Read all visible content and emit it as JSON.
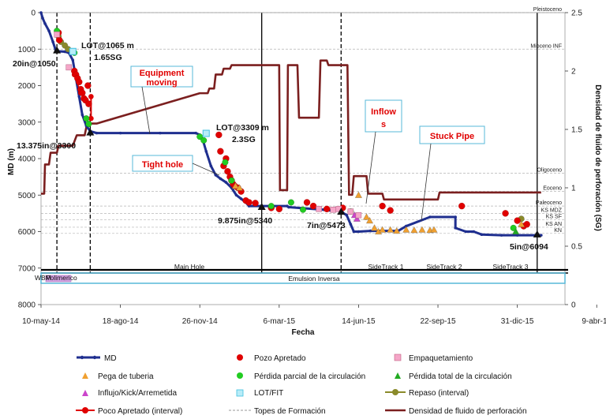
{
  "chart_data": {
    "type": "scatter",
    "xlabel": "Fecha",
    "ylabel": "MD (m)",
    "y2label": "Densidad de fluido de perforación (SG)",
    "ylim": [
      0,
      8000
    ],
    "y2lim": [
      0,
      2.5
    ],
    "x_tick_labels": [
      "10-may-14",
      "18-ago-14",
      "26-nov-14",
      "6-mar-15",
      "14-jun-15",
      "22-sep-15",
      "31-dic-15",
      "9-abr-16"
    ],
    "y_ticks": [
      0,
      1000,
      2000,
      3000,
      4000,
      5000,
      6000,
      7000,
      8000
    ],
    "y2_ticks": [
      0,
      0.5,
      1,
      1.5,
      2,
      2.5
    ],
    "series": [
      {
        "name": "MD",
        "color": "#1f2f8f",
        "points": [
          [
            0,
            0
          ],
          [
            2,
            150
          ],
          [
            5,
            300
          ],
          [
            10,
            500
          ],
          [
            15,
            800
          ],
          [
            18,
            1000
          ],
          [
            22,
            1060
          ],
          [
            30,
            1070
          ],
          [
            35,
            1100
          ],
          [
            40,
            1300
          ],
          [
            44,
            1800
          ],
          [
            48,
            2300
          ],
          [
            52,
            2800
          ],
          [
            57,
            3100
          ],
          [
            62,
            3250
          ],
          [
            70,
            3300
          ],
          [
            100,
            3300
          ],
          [
            150,
            3300
          ],
          [
            195,
            3300
          ],
          [
            200,
            3350
          ],
          [
            204,
            3500
          ],
          [
            208,
            3800
          ],
          [
            214,
            4200
          ],
          [
            220,
            4450
          ],
          [
            226,
            4550
          ],
          [
            233,
            4650
          ],
          [
            240,
            4800
          ],
          [
            246,
            5000
          ],
          [
            252,
            5100
          ],
          [
            258,
            5200
          ],
          [
            262,
            5300
          ],
          [
            278,
            5300
          ],
          [
            310,
            5300
          ],
          [
            312,
            5330
          ],
          [
            330,
            5360
          ],
          [
            356,
            5400
          ],
          [
            360,
            5420
          ],
          [
            378,
            5430
          ],
          [
            380,
            5480
          ],
          [
            385,
            5550
          ],
          [
            390,
            5800
          ],
          [
            394,
            6000
          ],
          [
            400,
            6000
          ],
          [
            415,
            5980
          ],
          [
            440,
            5980
          ],
          [
            450,
            5980
          ],
          [
            460,
            5850
          ],
          [
            490,
            5600
          ],
          [
            522,
            5600
          ],
          [
            522,
            5900
          ],
          [
            535,
            6000
          ],
          [
            545,
            6000
          ],
          [
            555,
            6080
          ],
          [
            580,
            6100
          ],
          [
            600,
            6100
          ],
          [
            625,
            6100
          ],
          [
            630,
            6100
          ]
        ]
      },
      {
        "name": "Densidad de fluido de perforación",
        "color": "#7b1f1f",
        "points": [
          [
            0,
            0.95
          ],
          [
            4,
            0.95
          ],
          [
            5,
            1.2
          ],
          [
            10,
            1.2
          ],
          [
            12,
            1.3
          ],
          [
            20,
            1.3
          ],
          [
            22,
            1.36
          ],
          [
            40,
            1.36
          ],
          [
            45,
            1.45
          ],
          [
            55,
            1.45
          ],
          [
            58,
            1.55
          ],
          [
            70,
            1.55
          ],
          [
            200,
            1.81
          ],
          [
            210,
            1.81
          ],
          [
            212,
            1.85
          ],
          [
            218,
            1.85
          ],
          [
            220,
            1.97
          ],
          [
            228,
            1.97
          ],
          [
            230,
            2.02
          ],
          [
            238,
            2.02
          ],
          [
            240,
            2.05
          ],
          [
            300,
            2.05
          ],
          [
            301,
            0.98
          ],
          [
            310,
            0.98
          ],
          [
            311,
            2.05
          ],
          [
            323,
            2.05
          ],
          [
            325,
            1.6
          ],
          [
            350,
            1.6
          ],
          [
            352,
            2.09
          ],
          [
            360,
            2.09
          ],
          [
            362,
            2.05
          ],
          [
            386,
            2.05
          ],
          [
            388,
            0.94
          ],
          [
            392,
            0.94
          ],
          [
            394,
            1.1
          ],
          [
            410,
            1.1
          ],
          [
            412,
            0.95
          ],
          [
            430,
            0.95
          ],
          [
            432,
            0.9
          ],
          [
            500,
            0.9
          ],
          [
            502,
            0.96
          ],
          [
            610,
            0.96
          ],
          [
            612,
            0.96
          ],
          [
            630,
            0.96
          ]
        ]
      },
      {
        "name": "Pozo Apretado",
        "color": "#e00000",
        "points": [
          [
            22,
            550
          ],
          [
            23,
            750
          ],
          [
            42,
            1600
          ],
          [
            44,
            1700
          ],
          [
            46,
            1800
          ],
          [
            48,
            1900
          ],
          [
            50,
            2100
          ],
          [
            52,
            2200
          ],
          [
            54,
            2350
          ],
          [
            56,
            2400
          ],
          [
            59,
            2000
          ],
          [
            60,
            2500
          ],
          [
            224,
            3350
          ],
          [
            226,
            3800
          ],
          [
            230,
            4200
          ],
          [
            233,
            4000
          ],
          [
            235,
            4350
          ],
          [
            238,
            4500
          ],
          [
            240,
            4600
          ],
          [
            242,
            4700
          ],
          [
            244,
            4750
          ],
          [
            248,
            4800
          ],
          [
            252,
            4900
          ],
          [
            258,
            5150
          ],
          [
            262,
            5200
          ],
          [
            270,
            5220
          ],
          [
            290,
            5350
          ],
          [
            300,
            5380
          ],
          [
            335,
            5200
          ],
          [
            343,
            5300
          ],
          [
            360,
            5380
          ],
          [
            380,
            5350
          ],
          [
            430,
            5300
          ],
          [
            440,
            5420
          ],
          [
            530,
            5300
          ],
          [
            585,
            5500
          ],
          [
            600,
            5700
          ],
          [
            608,
            5850
          ],
          [
            612,
            5800
          ]
        ]
      },
      {
        "name": "Pega de tuberia",
        "color": "#f0a030",
        "points": [
          [
            245,
            4750
          ],
          [
            250,
            4800
          ],
          [
            400,
            5000
          ],
          [
            410,
            5600
          ],
          [
            414,
            5700
          ],
          [
            420,
            5900
          ],
          [
            425,
            6000
          ],
          [
            430,
            5950
          ],
          [
            440,
            5950
          ],
          [
            448,
            5980
          ],
          [
            460,
            5950
          ],
          [
            470,
            5960
          ],
          [
            480,
            5950
          ],
          [
            490,
            5960
          ],
          [
            495,
            5950
          ],
          [
            605,
            5800
          ]
        ]
      },
      {
        "name": "Empaquetamiento",
        "color": "#f5a6c8",
        "points": [
          [
            20,
            600
          ],
          [
            35,
            1500
          ],
          [
            350,
            5380
          ],
          [
            368,
            5400
          ],
          [
            375,
            5380
          ],
          [
            390,
            5450
          ],
          [
            400,
            5550
          ]
        ]
      },
      {
        "name": "Pérdida parcial de la circulación",
        "color": "#22cc22",
        "points": [
          [
            20,
            500
          ],
          [
            42,
            1100
          ],
          [
            57,
            2900
          ],
          [
            60,
            3050
          ],
          [
            200,
            3400
          ],
          [
            205,
            3500
          ],
          [
            232,
            4100
          ],
          [
            240,
            4600
          ],
          [
            290,
            5300
          ],
          [
            315,
            5200
          ],
          [
            330,
            5400
          ],
          [
            390,
            5450
          ],
          [
            595,
            5900
          ]
        ]
      },
      {
        "name": "Pérdida total de la circulación",
        "color": "#22aa22",
        "points": [
          [
            598,
            6000
          ]
        ]
      },
      {
        "name": "Influjo/Kick/Arremetida",
        "color": "#cc44cc",
        "points": [
          [
            395,
            5550
          ],
          [
            398,
            5650
          ]
        ]
      },
      {
        "name": "LOT/FIT",
        "color": "#40c0e0",
        "points": [
          [
            40,
            1065
          ],
          [
            208,
            3309
          ]
        ]
      },
      {
        "name": "Repaso (interval)",
        "color": "#8a8a2a",
        "points": [
          [
            22,
            650
          ],
          [
            25,
            800
          ],
          [
            30,
            900
          ],
          [
            34,
            1000
          ],
          [
            605,
            5650
          ]
        ]
      },
      {
        "name": "Poco Apretado (interval)",
        "color": "#e00000",
        "points": [
          [
            42,
            1700
          ],
          [
            50,
            2200
          ],
          [
            63,
            2300
          ],
          [
            63,
            2900
          ]
        ]
      },
      {
        "name": "Topes de Formación",
        "color": "#9a9a9a",
        "points": []
      }
    ],
    "formations": [
      {
        "name": "Pleistoceno",
        "md": 0
      },
      {
        "name": "Mioceno INF",
        "md": 1000
      },
      {
        "name": "Oligoceno",
        "md": 4400
      },
      {
        "name": "Eoceno",
        "md": 4900
      },
      {
        "name": "Paleoceno",
        "md": 5300
      },
      {
        "name": "KS MDZ",
        "md": 5500
      },
      {
        "name": "KS SF",
        "md": 5680
      },
      {
        "name": "KS AN",
        "md": 5880
      },
      {
        "name": "KN",
        "md": 6050
      }
    ],
    "casing_labels": [
      "20in@1050",
      "13.375in@3300",
      "9.875in@5340",
      "7in@5473",
      "5in@6094"
    ],
    "lot_labels": [
      {
        "line1": "LOT@1065 m",
        "line2": "1.65SG"
      },
      {
        "line1": "LOT@3309 m",
        "line2": "2.3SG"
      }
    ],
    "event_labels": [
      "Equipment moving",
      "Tight hole",
      "Inflow s",
      "Stuck Pipe"
    ],
    "sections": [
      "Main Hole",
      "SideTrack 1",
      "SideTrack 2",
      "SideTrack 3"
    ],
    "mud_types": [
      "WBM",
      "Polimerico",
      "Emulsion Inversa"
    ]
  }
}
